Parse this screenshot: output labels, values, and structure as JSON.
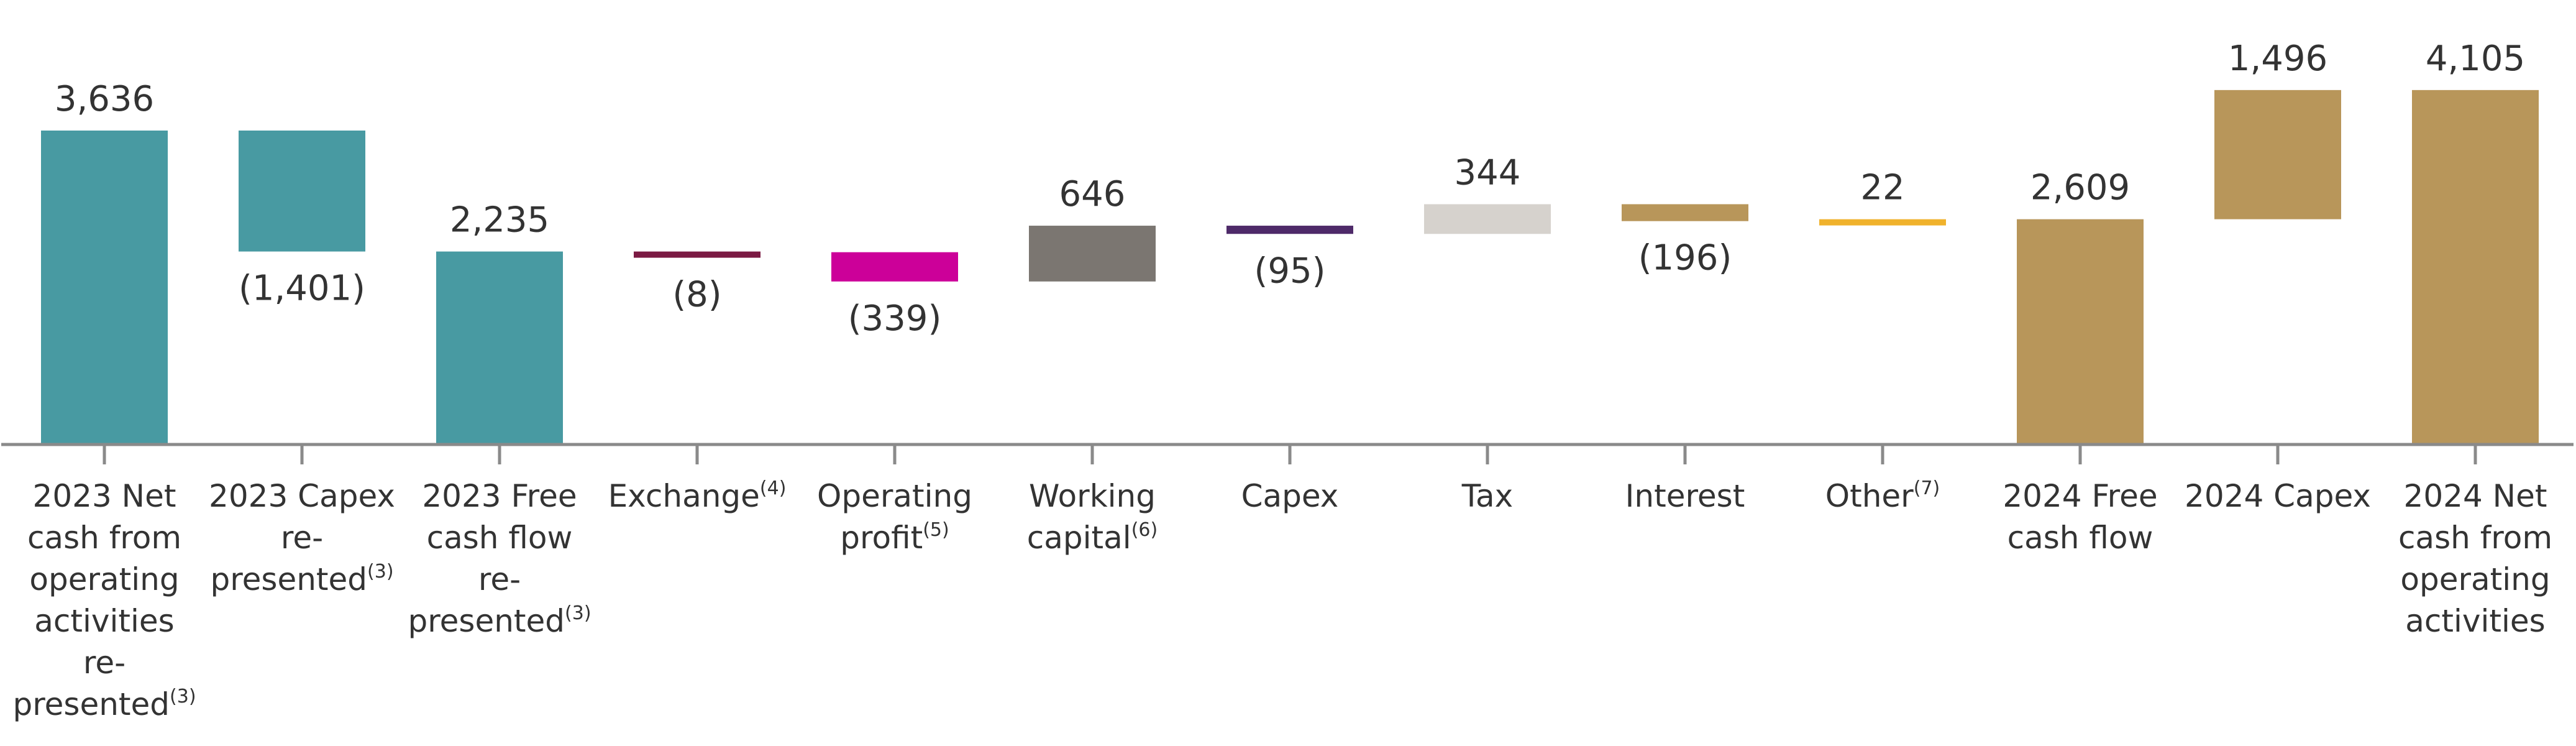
{
  "chart_data": {
    "type": "bar",
    "subtype": "waterfall",
    "title": "",
    "xlabel": "",
    "ylabel": "",
    "ylim": [
      0,
      4400
    ],
    "grid": false,
    "legend": "none",
    "categories": [
      "2023 Net cash from operating activities re-presented(3)",
      "2023 Capex re-presented(3)",
      "2023 Free cash flow re-presented(3)",
      "Exchange(4)",
      "Operating profit(5)",
      "Working capital(6)",
      "Capex",
      "Tax",
      "Interest",
      "Other(7)",
      "2024 Free cash flow",
      "2024 Capex",
      "2024 Net cash from operating activities"
    ],
    "category_lines": [
      [
        {
          "t": "2023 Net"
        },
        {
          "t": "cash from"
        },
        {
          "t": "operating"
        },
        {
          "t": "activities"
        },
        {
          "t": "re-"
        },
        {
          "t": "presented",
          "sup": "(3)"
        }
      ],
      [
        {
          "t": "2023 Capex"
        },
        {
          "t": "re-"
        },
        {
          "t": "presented",
          "sup": "(3)"
        }
      ],
      [
        {
          "t": "2023 Free"
        },
        {
          "t": "cash flow"
        },
        {
          "t": "re-"
        },
        {
          "t": "presented",
          "sup": "(3)"
        }
      ],
      [
        {
          "t": "Exchange",
          "sup": "(4)"
        }
      ],
      [
        {
          "t": "Operating"
        },
        {
          "t": "profit",
          "sup": "(5)"
        }
      ],
      [
        {
          "t": "Working"
        },
        {
          "t": "capital",
          "sup": "(6)"
        }
      ],
      [
        {
          "t": "Capex"
        }
      ],
      [
        {
          "t": "Tax"
        }
      ],
      [
        {
          "t": "Interest"
        }
      ],
      [
        {
          "t": "Other",
          "sup": "(7)"
        }
      ],
      [
        {
          "t": "2024 Free"
        },
        {
          "t": "cash flow"
        }
      ],
      [
        {
          "t": "2024 Capex"
        }
      ],
      [
        {
          "t": "2024 Net"
        },
        {
          "t": "cash from"
        },
        {
          "t": "operating"
        },
        {
          "t": "activities"
        }
      ]
    ],
    "values": [
      3636,
      -1401,
      2235,
      -8,
      -339,
      646,
      -95,
      344,
      -196,
      22,
      2609,
      1496,
      4105
    ],
    "value_labels": [
      "3,636",
      "(1,401)",
      "2,235",
      "(8)",
      "(339)",
      "646",
      "(95)",
      "344",
      "(196)",
      "22",
      "2,609",
      "1,496",
      "4,105"
    ],
    "measure": [
      "total",
      "relative",
      "total",
      "relative",
      "relative",
      "relative",
      "relative",
      "relative",
      "relative",
      "relative",
      "total",
      "relative",
      "total"
    ],
    "colors": [
      "#489aa2",
      "#489aa2",
      "#489aa2",
      "#7b1a43",
      "#cc0099",
      "#7b7671",
      "#4e2a69",
      "#d6d2cd",
      "#b8965a",
      "#f0b22c",
      "#b8965a",
      "#b8965a",
      "#b8965a"
    ]
  }
}
